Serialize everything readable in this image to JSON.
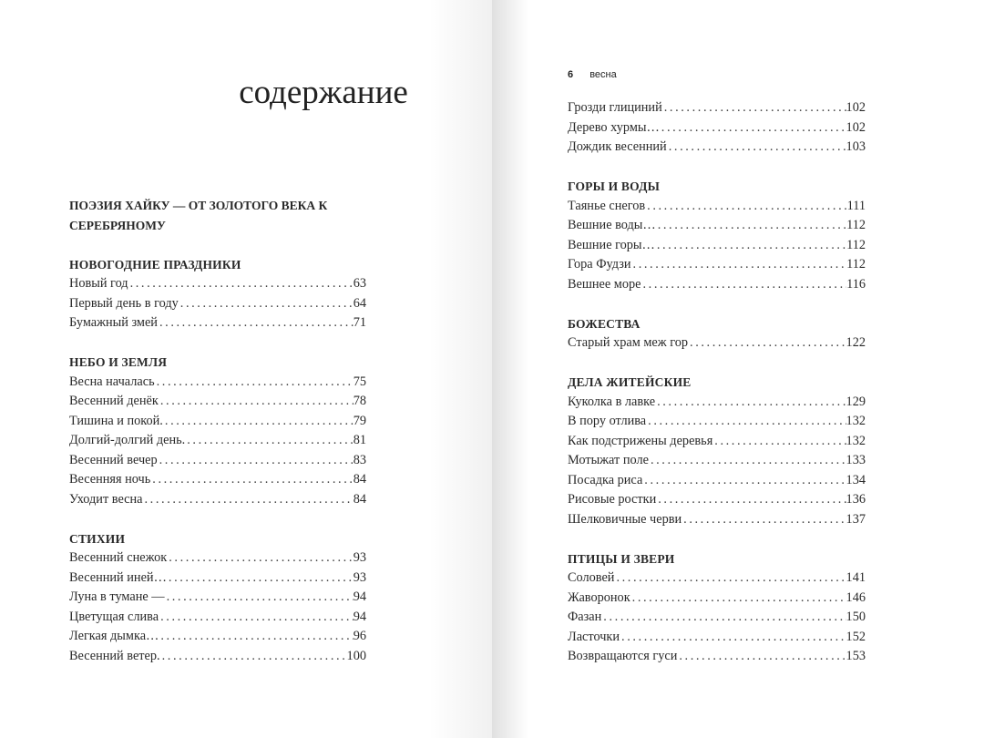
{
  "left_page": {
    "title": "содержание",
    "intro_heading": "ПОЭЗИЯ ХАЙКУ — ОТ ЗОЛОТОГО ВЕКА К СЕРЕБРЯНОМУ",
    "sections": [
      {
        "heading": "НОВОГОДНИЕ ПРАЗДНИКИ",
        "items": [
          {
            "title": "Новый год",
            "page": "63"
          },
          {
            "title": "Первый день в году",
            "page": "64"
          },
          {
            "title": "Бумажный змей",
            "page": "71"
          }
        ]
      },
      {
        "heading": "НЕБО И ЗЕМЛЯ",
        "items": [
          {
            "title": "Весна началась",
            "page": "75"
          },
          {
            "title": "Весенний денёк",
            "page": "78"
          },
          {
            "title": "Тишина и покой.",
            "page": "79"
          },
          {
            "title": "Долгий-долгий день.",
            "page": "81"
          },
          {
            "title": "Весенний вечер",
            "page": "83"
          },
          {
            "title": "Весенняя ночь",
            "page": "84"
          },
          {
            "title": "Уходит весна",
            "page": "84"
          }
        ]
      },
      {
        "heading": "СТИХИИ",
        "items": [
          {
            "title": "Весенний снежок",
            "page": "93"
          },
          {
            "title": "Весенний иней…",
            "page": "93"
          },
          {
            "title": "Луна в тумане —",
            "page": "94"
          },
          {
            "title": "Цветущая слива",
            "page": "94"
          },
          {
            "title": "Легкая дымка…",
            "page": "96"
          },
          {
            "title": "Весенний ветер.",
            "page": "100"
          }
        ]
      }
    ]
  },
  "right_page": {
    "running_head": {
      "page_number": "6",
      "section": "весна"
    },
    "sections": [
      {
        "heading": "",
        "items": [
          {
            "title": "Грозди глициний",
            "page": "102"
          },
          {
            "title": "Дерево хурмы…",
            "page": "102"
          },
          {
            "title": "Дождик весенний",
            "page": "103"
          }
        ]
      },
      {
        "heading": "ГОРЫ И ВОДЫ",
        "items": [
          {
            "title": "Таянье снегов",
            "page": "111"
          },
          {
            "title": "Вешние воды…",
            "page": "112"
          },
          {
            "title": "Вешние горы…",
            "page": "112"
          },
          {
            "title": "Гора Фудзи",
            "page": "112"
          },
          {
            "title": "Вешнее море",
            "page": "116"
          }
        ]
      },
      {
        "heading": "БОЖЕСТВА",
        "items": [
          {
            "title": "Старый храм меж гор",
            "page": "122"
          }
        ]
      },
      {
        "heading": "ДЕЛА ЖИТЕЙСКИЕ",
        "items": [
          {
            "title": "Куколка в лавке",
            "page": "129"
          },
          {
            "title": "В пору отлива",
            "page": "132"
          },
          {
            "title": "Как подстрижены деревья",
            "page": "132"
          },
          {
            "title": "Мотыжат поле",
            "page": "133"
          },
          {
            "title": "Посадка риса",
            "page": "134"
          },
          {
            "title": "Рисовые ростки",
            "page": "136"
          },
          {
            "title": "Шелковичные черви",
            "page": "137"
          }
        ]
      },
      {
        "heading": "ПТИЦЫ И ЗВЕРИ",
        "items": [
          {
            "title": "Соловей",
            "page": "141"
          },
          {
            "title": "Жаворонок",
            "page": "146"
          },
          {
            "title": "Фазан",
            "page": "150"
          },
          {
            "title": "Ласточки",
            "page": "152"
          },
          {
            "title": "Возвращаются гуси",
            "page": "153"
          }
        ]
      }
    ]
  }
}
